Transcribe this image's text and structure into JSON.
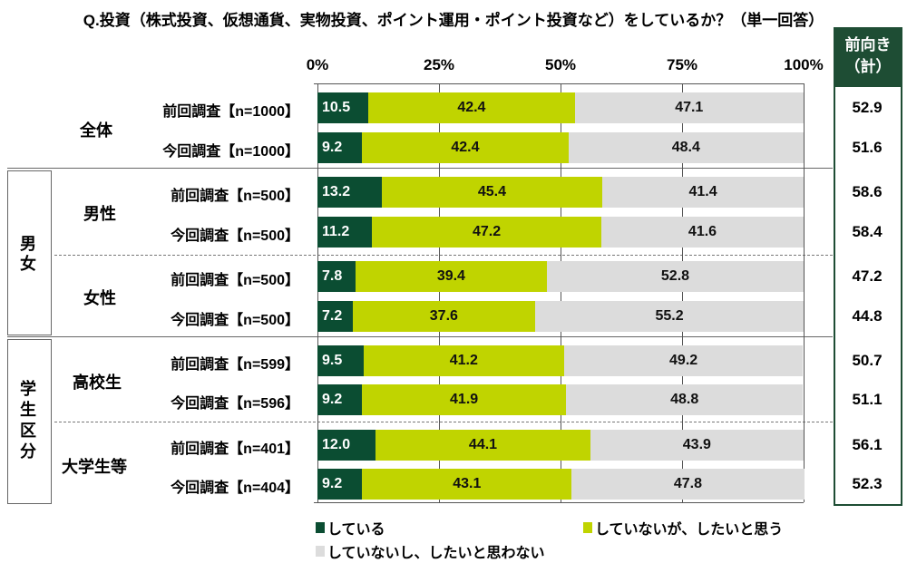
{
  "chart_data": {
    "type": "bar",
    "orientation": "horizontal-stacked-100",
    "title": "Q.投資（株式投資、仮想通貨、実物投資、ポイント運用・ポイント投資など）をしているか？（単一回答）",
    "x_ticks": [
      "0%",
      "25%",
      "50%",
      "75%",
      "100%"
    ],
    "xlim": [
      0,
      100
    ],
    "right_column_header": "前向き（計）",
    "series": [
      {
        "name": "している",
        "color": "#0b4d32"
      },
      {
        "name": "していないが、したいと思う",
        "color": "#c0d400"
      },
      {
        "name": "していないし、したいと思わない",
        "color": "#dcdcdc"
      }
    ],
    "rows": [
      {
        "group": "",
        "sub": "全体",
        "label": "前回調査【n=1000】",
        "values": [
          10.5,
          42.4,
          47.1
        ],
        "total": "52.9"
      },
      {
        "group": "",
        "sub": "全体",
        "label": "今回調査【n=1000】",
        "values": [
          9.2,
          42.4,
          48.4
        ],
        "total": "51.6"
      },
      {
        "group": "男女",
        "sub": "男性",
        "label": "前回調査【n=500】",
        "values": [
          13.2,
          45.4,
          41.4
        ],
        "total": "58.6"
      },
      {
        "group": "男女",
        "sub": "男性",
        "label": "今回調査【n=500】",
        "values": [
          11.2,
          47.2,
          41.6
        ],
        "total": "58.4"
      },
      {
        "group": "男女",
        "sub": "女性",
        "label": "前回調査【n=500】",
        "values": [
          7.8,
          39.4,
          52.8
        ],
        "total": "47.2"
      },
      {
        "group": "男女",
        "sub": "女性",
        "label": "今回調査【n=500】",
        "values": [
          7.2,
          37.6,
          55.2
        ],
        "total": "44.8"
      },
      {
        "group": "学生区分",
        "sub": "高校生",
        "label": "前回調査【n=599】",
        "values": [
          9.5,
          41.2,
          49.2
        ],
        "total": "50.7"
      },
      {
        "group": "学生区分",
        "sub": "高校生",
        "label": "今回調査【n=596】",
        "values": [
          9.2,
          41.9,
          48.8
        ],
        "total": "51.1"
      },
      {
        "group": "学生区分",
        "sub": "大学生等",
        "label": "前回調査【n=401】",
        "values": [
          12.0,
          44.1,
          43.9
        ],
        "total": "56.1"
      },
      {
        "group": "学生区分",
        "sub": "大学生等",
        "label": "今回調査【n=404】",
        "values": [
          9.2,
          43.1,
          47.8
        ],
        "total": "52.3"
      }
    ],
    "subgroups": [
      "全体",
      "男性",
      "女性",
      "高校生",
      "大学生等"
    ],
    "groups": [
      "男女",
      "学生区分"
    ]
  }
}
